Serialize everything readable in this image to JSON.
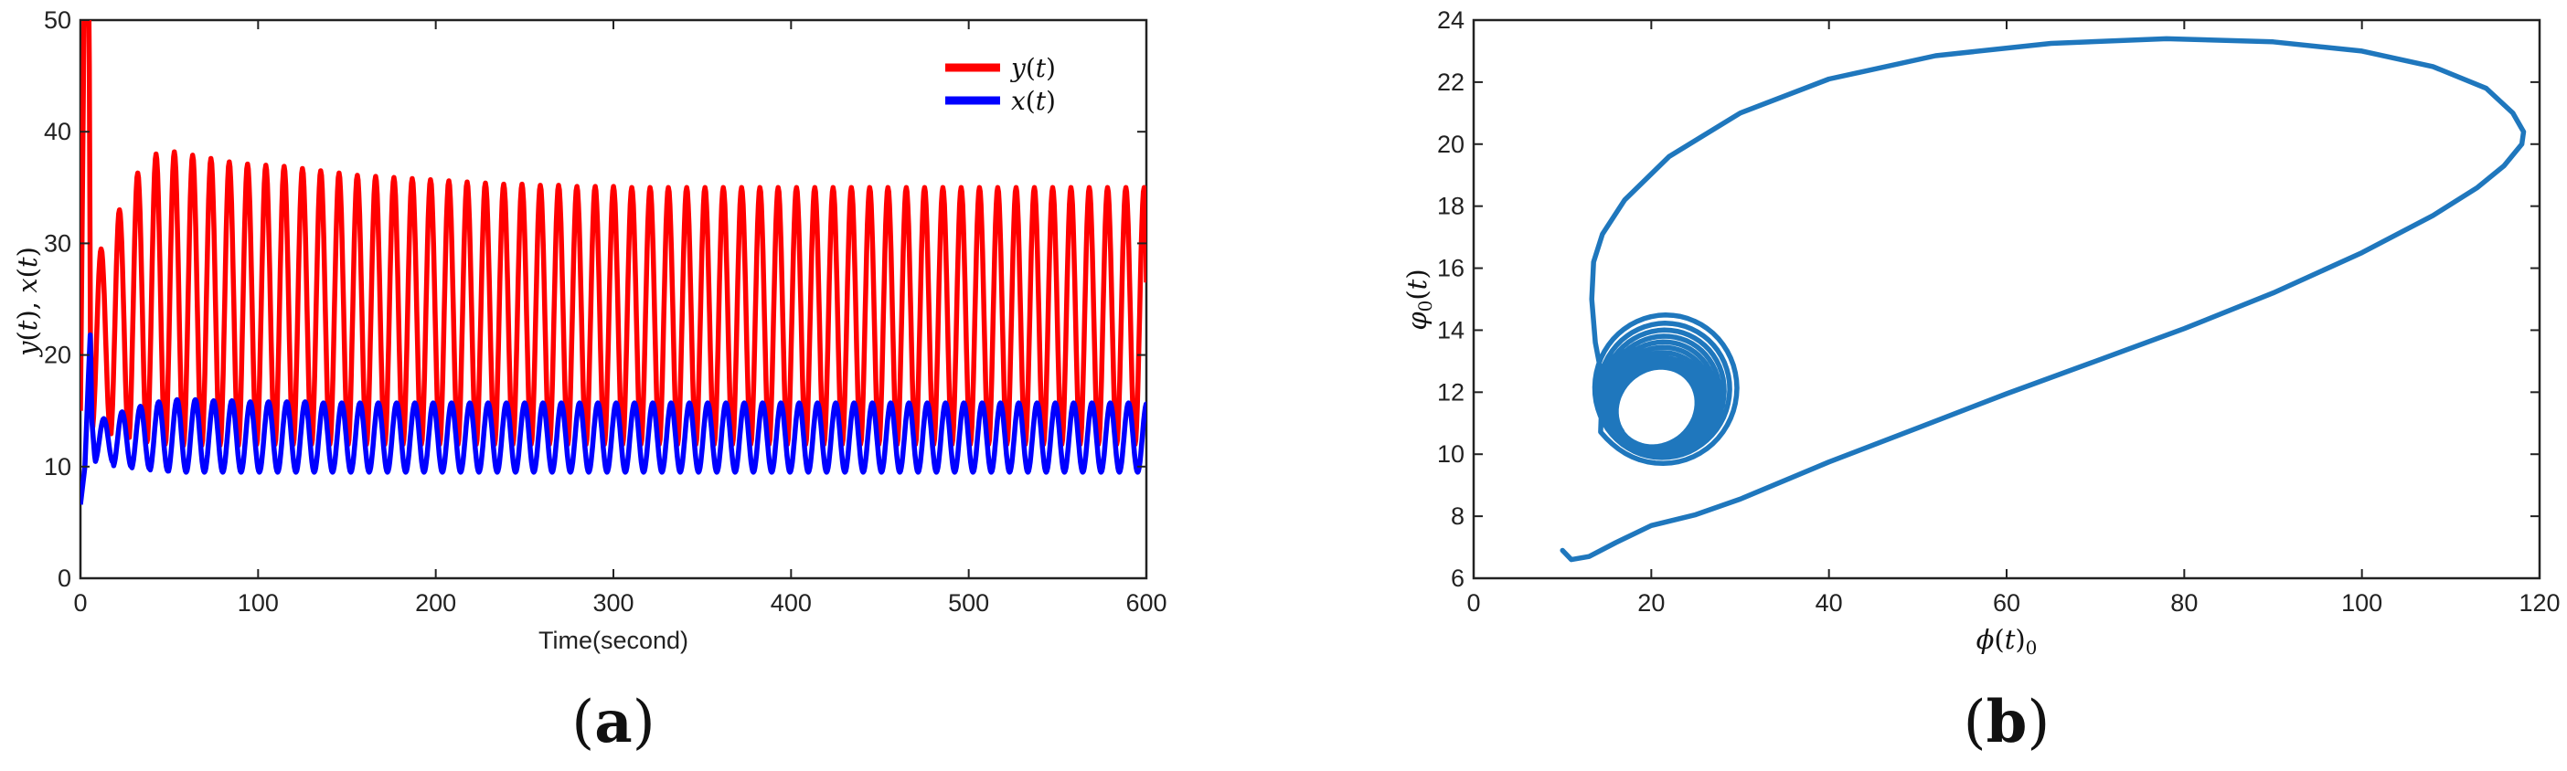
{
  "chart_data": [
    {
      "type": "line",
      "panel_label_parts": [
        "(",
        "a",
        ")"
      ],
      "xlabel": "Time(second)",
      "ylabel_parts": [
        "y",
        "(",
        "t",
        "), ",
        "x",
        "(",
        "t",
        ")"
      ],
      "xlim": [
        0,
        600
      ],
      "ylim": [
        0,
        50
      ],
      "xticks": [
        0,
        100,
        200,
        300,
        400,
        500,
        600
      ],
      "yticks": [
        0,
        10,
        20,
        30,
        40,
        50
      ],
      "grid": false,
      "legend_position": "top-right",
      "series": [
        {
          "name": "y(t)",
          "name_parts": [
            "y",
            "(",
            "t",
            ")"
          ],
          "color": "#ff0000",
          "initial": [
            [
              0,
              15
            ],
            [
              2,
              50
            ],
            [
              4.8,
              50
            ],
            [
              5,
              46
            ],
            [
              5.6,
              22
            ],
            [
              6.5,
              15
            ]
          ],
          "period": 10.3,
          "start_t": 6.5,
          "peaks": [
            29.5,
            33,
            36.3,
            38,
            38.2,
            37.9,
            37.6,
            37.3,
            37.1,
            37.0,
            36.9,
            36.7,
            36.5,
            36.3,
            36.1,
            36.0,
            35.9,
            35.8,
            35.7,
            35.6,
            35.5,
            35.4,
            35.3,
            35.3,
            35.2,
            35.2,
            35.1,
            35.1,
            35.1,
            35.0,
            35.0,
            35.0,
            35.0,
            35.0,
            35.0,
            35.0,
            35.0,
            35.0,
            35.0,
            35.0,
            35.0,
            35.0,
            35.0,
            35.0,
            35.0,
            35.0,
            35.0,
            35.0,
            35.0,
            35.0,
            35.0,
            35.0,
            35.0,
            35.0,
            35.0,
            35.0,
            35.0,
            35.0
          ],
          "troughs": [
            13.3,
            12.6,
            12.2,
            12.0,
            11.9,
            11.9,
            11.9,
            11.9,
            12.0,
            12.0,
            12.0,
            12.0,
            12.0,
            12.0,
            12.0,
            12.0,
            12.0,
            12.0,
            12.0,
            12.0,
            12.0,
            12.0,
            12.0,
            12.0,
            12.0,
            12.0,
            12.0,
            12.0,
            12.0,
            12.0,
            12.0,
            12.0,
            12.0,
            12.0,
            12.0,
            12.0,
            12.0,
            12.0,
            12.0,
            12.0,
            12.0,
            12.0,
            12.0,
            12.0,
            12.0,
            12.0,
            12.0,
            12.0,
            12.0,
            12.0,
            12.0,
            12.0,
            12.0,
            12.0,
            12.0,
            12.0,
            12.0,
            12.0
          ],
          "end": [
            600,
            26.5
          ]
        },
        {
          "name": "x(t)",
          "name_parts": [
            "x",
            "(",
            "t",
            ")"
          ],
          "color": "#0000ff",
          "initial": [
            [
              0,
              6.6
            ],
            [
              2.5,
              10
            ],
            [
              4.5,
              18
            ],
            [
              5.5,
              21.8
            ],
            [
              6.5,
              14
            ],
            [
              8,
              11
            ]
          ],
          "period": 10.3,
          "start_t": 8,
          "peaks": [
            14.3,
            14.9,
            15.4,
            15.8,
            16.0,
            16.0,
            15.9,
            15.9,
            15.8,
            15.8,
            15.8,
            15.8,
            15.7,
            15.7,
            15.7,
            15.7,
            15.7,
            15.7,
            15.7,
            15.7,
            15.7,
            15.7,
            15.7,
            15.7,
            15.7,
            15.7,
            15.7,
            15.7,
            15.7,
            15.7,
            15.7,
            15.7,
            15.7,
            15.7,
            15.7,
            15.7,
            15.7,
            15.7,
            15.7,
            15.7,
            15.7,
            15.7,
            15.7,
            15.7,
            15.7,
            15.7,
            15.7,
            15.7,
            15.7,
            15.7,
            15.7,
            15.7,
            15.7,
            15.7,
            15.7,
            15.7,
            15.7,
            15.7
          ],
          "troughs": [
            10.4,
            10.0,
            9.8,
            9.6,
            9.5,
            9.5,
            9.5,
            9.5,
            9.5,
            9.5,
            9.5,
            9.5,
            9.5,
            9.5,
            9.5,
            9.5,
            9.5,
            9.5,
            9.5,
            9.5,
            9.5,
            9.5,
            9.5,
            9.5,
            9.5,
            9.5,
            9.5,
            9.5,
            9.5,
            9.5,
            9.5,
            9.5,
            9.5,
            9.5,
            9.5,
            9.5,
            9.5,
            9.5,
            9.5,
            9.5,
            9.5,
            9.5,
            9.5,
            9.5,
            9.5,
            9.5,
            9.5,
            9.5,
            9.5,
            9.5,
            9.5,
            9.5,
            9.5,
            9.5,
            9.5,
            9.5,
            9.5,
            9.5
          ],
          "end": [
            600,
            15.5
          ]
        }
      ]
    },
    {
      "type": "line",
      "panel_label_parts": [
        "(",
        "b",
        ")"
      ],
      "xlabel_parts": [
        "ϕ",
        "(",
        "t",
        ")",
        "0"
      ],
      "ylabel_parts": [
        "φ",
        "0",
        "(",
        "t",
        ")"
      ],
      "xlim": [
        0,
        120
      ],
      "ylim": [
        6,
        24
      ],
      "xticks": [
        0,
        20,
        40,
        60,
        80,
        100,
        120
      ],
      "yticks": [
        6,
        8,
        10,
        12,
        14,
        16,
        18,
        20,
        22,
        24
      ],
      "grid": false,
      "series": [
        {
          "color": "#1f77bd",
          "trajectory": [
            [
              10,
              6.9
            ],
            [
              11,
              6.6
            ],
            [
              13,
              6.7
            ],
            [
              16,
              7.15
            ],
            [
              20,
              7.7
            ],
            [
              25,
              8.05
            ],
            [
              30,
              8.55
            ],
            [
              40,
              9.75
            ],
            [
              50,
              10.85
            ],
            [
              60,
              11.95
            ],
            [
              70,
              13.0
            ],
            [
              80,
              14.05
            ],
            [
              90,
              15.2
            ],
            [
              100,
              16.5
            ],
            [
              108,
              17.7
            ],
            [
              113,
              18.6
            ],
            [
              116,
              19.3
            ],
            [
              118,
              20.0
            ],
            [
              118.2,
              20.4
            ],
            [
              117,
              21.0
            ],
            [
              114,
              21.8
            ],
            [
              108,
              22.5
            ],
            [
              100,
              23.0
            ],
            [
              90,
              23.3
            ],
            [
              78,
              23.4
            ],
            [
              65,
              23.25
            ],
            [
              52,
              22.85
            ],
            [
              40,
              22.1
            ],
            [
              30,
              21.0
            ],
            [
              22,
              19.6
            ],
            [
              17,
              18.2
            ],
            [
              14.5,
              17.1
            ],
            [
              13.5,
              16.2
            ],
            [
              13.3,
              15.0
            ],
            [
              13.7,
              13.6
            ],
            [
              14.5,
              12.4
            ]
          ],
          "spiral": {
            "center": [
              21.5,
              12.2
            ],
            "inner_center": [
              20.5,
              11.5
            ],
            "outer_radius": [
              8.8,
              2.6
            ],
            "inner_radius": [
              4.6,
              1.2
            ],
            "tilt_deg": 35,
            "loops": 10
          }
        }
      ]
    }
  ]
}
